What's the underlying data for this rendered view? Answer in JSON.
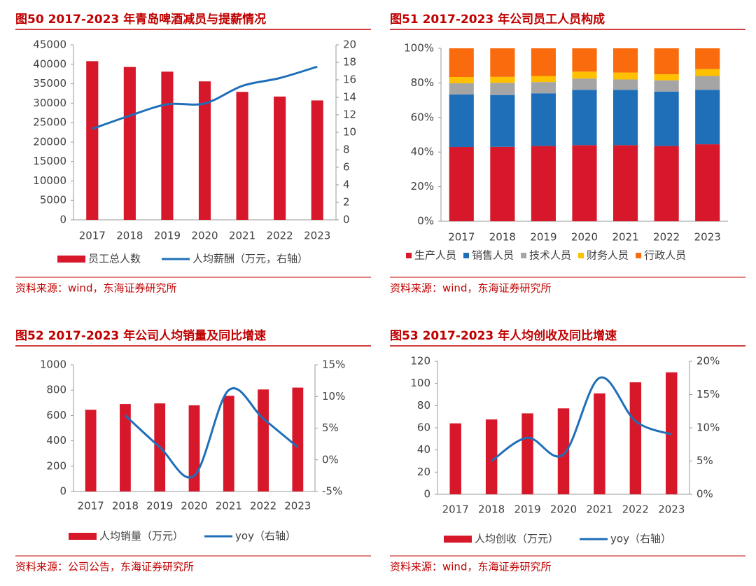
{
  "chart_data": [
    {
      "type": "bar_line",
      "title": "图50  2017-2023 年青岛啤酒减员与提薪情况",
      "source": "资料来源：wind，东海证券研究所",
      "categories": [
        "2017",
        "2018",
        "2019",
        "2020",
        "2021",
        "2022",
        "2023"
      ],
      "series": [
        {
          "name": "员工总人数",
          "type": "bar",
          "color": "#d7182a",
          "values": [
            40800,
            39300,
            38100,
            35600,
            32900,
            31700,
            30700
          ]
        },
        {
          "name": "人均薪酬（万元，右轴）",
          "type": "line",
          "axis": "y2",
          "color": "#1f6fb8",
          "values": [
            10.4,
            11.9,
            13.2,
            13.3,
            15.3,
            16.2,
            17.5
          ]
        }
      ],
      "ylim": [
        0,
        45000
      ],
      "yticks": [
        0,
        5000,
        10000,
        15000,
        20000,
        25000,
        30000,
        35000,
        40000,
        45000
      ],
      "y2lim": [
        0,
        20
      ],
      "y2ticks": [
        0,
        2,
        4,
        6,
        8,
        10,
        12,
        14,
        16,
        18,
        20
      ]
    },
    {
      "type": "stacked_bar",
      "title": "图51  2017-2023 年公司员工人员构成",
      "source": "资料来源：wind，东海证券研究所",
      "categories": [
        "2017",
        "2018",
        "2019",
        "2020",
        "2021",
        "2022",
        "2023"
      ],
      "series": [
        {
          "name": "生产人员",
          "color": "#d7182a",
          "values": [
            42.9,
            43,
            43.5,
            44,
            44,
            43.5,
            44.5
          ]
        },
        {
          "name": "销售人员",
          "color": "#1f6fb8",
          "values": [
            30.4,
            30,
            30.5,
            32,
            32,
            31.5,
            31.5
          ]
        },
        {
          "name": "技术人员",
          "color": "#a5a5a5",
          "values": [
            6.5,
            7,
            6.5,
            6.5,
            6,
            6.5,
            8
          ]
        },
        {
          "name": "财务人员",
          "color": "#ffc000",
          "values": [
            3.6,
            3.5,
            3.5,
            4,
            4,
            3.5,
            4
          ]
        },
        {
          "name": "行政人员",
          "color": "#f96b0c",
          "values": [
            16.6,
            16.5,
            16,
            13.5,
            14,
            15,
            12
          ]
        }
      ],
      "ylim": [
        0,
        100
      ],
      "yticks": [
        {
          "value": 0,
          "label": "0%"
        },
        {
          "value": 20,
          "label": "20%"
        },
        {
          "value": 40,
          "label": "40%"
        },
        {
          "value": 60,
          "label": "60%"
        },
        {
          "value": 80,
          "label": "80%"
        },
        {
          "value": 100,
          "label": "100%"
        }
      ]
    },
    {
      "type": "bar_line",
      "title": "图52  2017-2023 年公司人均销量及同比增速",
      "source": "资料来源：公司公告，东海证券研究所",
      "categories": [
        "2017",
        "2018",
        "2019",
        "2020",
        "2021",
        "2022",
        "2023"
      ],
      "series": [
        {
          "name": "人均销量（万元）",
          "type": "bar",
          "color": "#d7182a",
          "values": [
            645,
            690,
            695,
            680,
            755,
            805,
            820
          ]
        },
        {
          "name": "yoy（右轴）",
          "type": "line",
          "axis": "y2",
          "color": "#1f6fb8",
          "values": [
            null,
            7,
            2,
            -2.5,
            11,
            6.5,
            2
          ]
        }
      ],
      "ylim": [
        0,
        1000
      ],
      "yticks": [
        0,
        200,
        400,
        600,
        800,
        1000
      ],
      "y2lim": [
        -5,
        15
      ],
      "y2ticks": [
        {
          "value": -5,
          "label": "-5%"
        },
        {
          "value": 0,
          "label": "0%"
        },
        {
          "value": 5,
          "label": "5%"
        },
        {
          "value": 10,
          "label": "10%"
        },
        {
          "value": 15,
          "label": "15%"
        }
      ]
    },
    {
      "type": "bar_line",
      "title": "图53  2017-2023 年人均创收及同比增速",
      "source": "资料来源：wind，东海证券研究所",
      "categories": [
        "2017",
        "2018",
        "2019",
        "2020",
        "2021",
        "2022",
        "2023"
      ],
      "series": [
        {
          "name": "人均创收（万元）",
          "type": "bar",
          "color": "#d7182a",
          "values": [
            64,
            67.5,
            73,
            77.5,
            91,
            101,
            110
          ]
        },
        {
          "name": "yoy（右轴）",
          "type": "line",
          "axis": "y2",
          "color": "#1f6fb8",
          "values": [
            null,
            5,
            8.5,
            6,
            17.5,
            11,
            9
          ]
        }
      ],
      "ylim": [
        0,
        120
      ],
      "yticks": [
        0,
        20,
        40,
        60,
        80,
        100,
        120
      ],
      "y2lim": [
        0,
        20
      ],
      "y2ticks": [
        {
          "value": 0,
          "label": "0%"
        },
        {
          "value": 5,
          "label": "5%"
        },
        {
          "value": 10,
          "label": "10%"
        },
        {
          "value": 15,
          "label": "15%"
        },
        {
          "value": 20,
          "label": "20%"
        }
      ]
    }
  ]
}
